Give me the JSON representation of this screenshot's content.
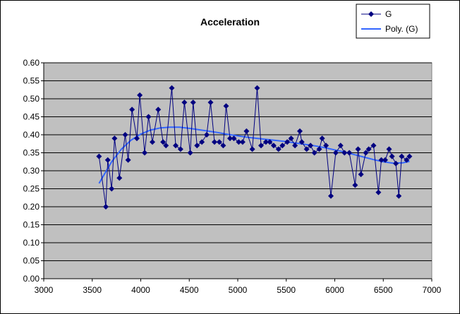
{
  "chart_data": {
    "type": "line",
    "title": "Acceleration",
    "xlabel": "",
    "ylabel": "",
    "xlim": [
      3000,
      7000
    ],
    "ylim": [
      0.0,
      0.6
    ],
    "x_ticks": [
      3000,
      3500,
      4000,
      4500,
      5000,
      5500,
      6000,
      6500,
      7000
    ],
    "y_ticks": [
      "0.00",
      "0.05",
      "0.10",
      "0.15",
      "0.20",
      "0.25",
      "0.30",
      "0.35",
      "0.40",
      "0.45",
      "0.50",
      "0.55",
      "0.60"
    ],
    "grid": "horizontal",
    "plot_background": "#c0c0c0",
    "legend_position": "top-right",
    "series": [
      {
        "name": "G",
        "color": "#000080",
        "marker": "diamond",
        "x": [
          3570,
          3640,
          3660,
          3700,
          3730,
          3780,
          3840,
          3870,
          3910,
          3960,
          3990,
          4040,
          4080,
          4120,
          4180,
          4230,
          4260,
          4320,
          4360,
          4410,
          4450,
          4510,
          4540,
          4580,
          4630,
          4680,
          4720,
          4760,
          4810,
          4850,
          4880,
          4920,
          4960,
          5010,
          5050,
          5090,
          5150,
          5200,
          5240,
          5290,
          5330,
          5370,
          5420,
          5460,
          5510,
          5550,
          5590,
          5640,
          5660,
          5710,
          5750,
          5790,
          5840,
          5870,
          5910,
          5960,
          6010,
          6060,
          6100,
          6150,
          6210,
          6240,
          6270,
          6320,
          6350,
          6400,
          6450,
          6480,
          6520,
          6560,
          6590,
          6630,
          6660,
          6690,
          6740,
          6770
        ],
        "values": [
          0.34,
          0.2,
          0.33,
          0.25,
          0.39,
          0.28,
          0.4,
          0.33,
          0.47,
          0.39,
          0.51,
          0.35,
          0.45,
          0.38,
          0.47,
          0.38,
          0.37,
          0.53,
          0.37,
          0.36,
          0.49,
          0.35,
          0.49,
          0.37,
          0.38,
          0.4,
          0.49,
          0.38,
          0.38,
          0.37,
          0.48,
          0.39,
          0.39,
          0.38,
          0.38,
          0.41,
          0.36,
          0.53,
          0.37,
          0.38,
          0.38,
          0.37,
          0.36,
          0.37,
          0.38,
          0.39,
          0.37,
          0.41,
          0.38,
          0.36,
          0.37,
          0.35,
          0.36,
          0.39,
          0.37,
          0.23,
          0.35,
          0.37,
          0.35,
          0.35,
          0.26,
          0.36,
          0.29,
          0.35,
          0.36,
          0.37,
          0.24,
          0.33,
          0.33,
          0.36,
          0.34,
          0.32,
          0.23,
          0.34,
          0.33,
          0.34
        ]
      },
      {
        "name": "Poly. (G)",
        "color": "#3366ff",
        "marker": "none",
        "x": [
          3570,
          3700,
          3800,
          3900,
          4000,
          4100,
          4200,
          4300,
          4400,
          4500,
          4600,
          4700,
          4800,
          4900,
          5000,
          5100,
          5200,
          5300,
          5400,
          5500,
          5600,
          5700,
          5800,
          5900,
          6000,
          6100,
          6200,
          6300,
          6400,
          6500,
          6600,
          6700,
          6770
        ],
        "values": [
          0.265,
          0.325,
          0.36,
          0.385,
          0.402,
          0.413,
          0.419,
          0.421,
          0.421,
          0.418,
          0.414,
          0.41,
          0.406,
          0.401,
          0.397,
          0.393,
          0.39,
          0.387,
          0.384,
          0.381,
          0.377,
          0.373,
          0.369,
          0.364,
          0.358,
          0.352,
          0.345,
          0.338,
          0.331,
          0.325,
          0.321,
          0.322,
          0.326
        ]
      }
    ]
  }
}
